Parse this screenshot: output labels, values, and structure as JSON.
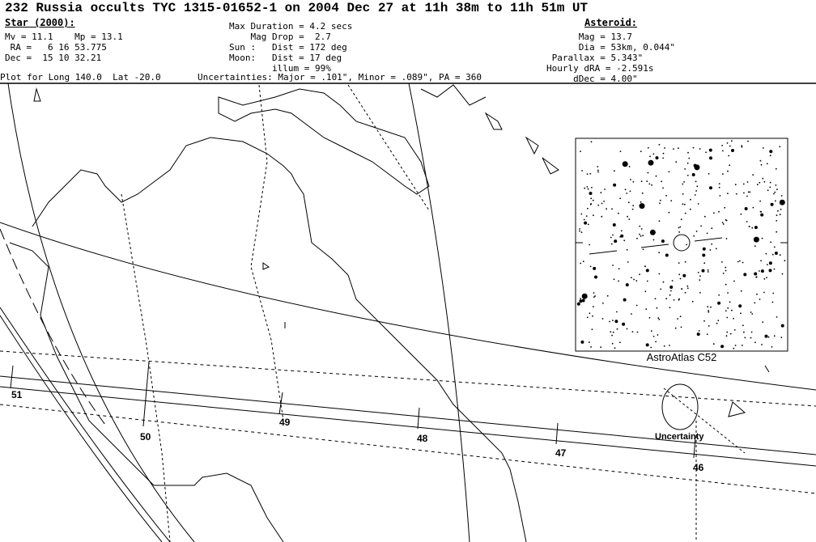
{
  "title": "232 Russia occults TYC 1315-01652-1 on 2004 Dec 27 at 11h 38m to 11h 51m UT",
  "star": {
    "heading": "Star (2000):",
    "mv_mp": "Mv = 11.1    Mp = 13.1",
    "ra": " RA =   6 16 53.775",
    "dec": "Dec =  15 10 32.21"
  },
  "event": {
    "max_duration": "Max Duration = 4.2 secs",
    "mag_drop": "    Mag Drop =  2.7",
    "sun": "Sun :   Dist = 172 deg",
    "moon": "Moon:   Dist = 17 deg",
    "illum": "        illum = 99%"
  },
  "asteroid": {
    "heading": "Asteroid:",
    "mag": "      Mag = 13.7",
    "dia": "      Dia = 53km, 0.044\"",
    "parallax": " Parallax = 5.343\"",
    "hourly_dra": "Hourly dRA = -2.591s",
    "ddec": "     dDec = 4.00\""
  },
  "plot_for": "Plot for Long 140.0  Lat -20.0",
  "uncertainties": "Uncertainties: Major = .101\", Minor = .089\", PA = 360",
  "map": {
    "star_chart_caption": "AstroAtlas C52",
    "uncertainty_label": "Uncertainty",
    "time_labels": [
      "51",
      "50",
      "49",
      "48",
      "47",
      "46"
    ]
  }
}
